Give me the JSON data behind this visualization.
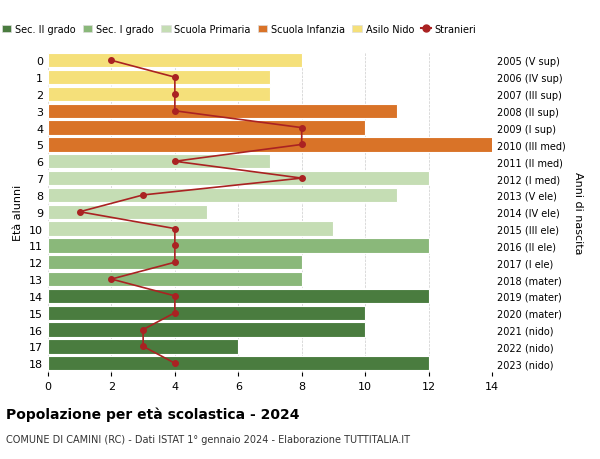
{
  "ages": [
    18,
    17,
    16,
    15,
    14,
    13,
    12,
    11,
    10,
    9,
    8,
    7,
    6,
    5,
    4,
    3,
    2,
    1,
    0
  ],
  "years": [
    "2005 (V sup)",
    "2006 (IV sup)",
    "2007 (III sup)",
    "2008 (II sup)",
    "2009 (I sup)",
    "2010 (III med)",
    "2011 (II med)",
    "2012 (I med)",
    "2013 (V ele)",
    "2014 (IV ele)",
    "2015 (III ele)",
    "2016 (II ele)",
    "2017 (I ele)",
    "2018 (mater)",
    "2019 (mater)",
    "2020 (mater)",
    "2021 (nido)",
    "2022 (nido)",
    "2023 (nido)"
  ],
  "bar_values": [
    12,
    6,
    10,
    10,
    12,
    8,
    8,
    12,
    9,
    5,
    11,
    12,
    7,
    15,
    10,
    11,
    7,
    7,
    8
  ],
  "stranieri_values": [
    4,
    3,
    3,
    4,
    4,
    2,
    4,
    4,
    4,
    1,
    3,
    8,
    4,
    8,
    8,
    4,
    4,
    4,
    2
  ],
  "bar_colors": [
    "#4a7c3f",
    "#4a7c3f",
    "#4a7c3f",
    "#4a7c3f",
    "#4a7c3f",
    "#8ab87a",
    "#8ab87a",
    "#8ab87a",
    "#c5ddb4",
    "#c5ddb4",
    "#c5ddb4",
    "#c5ddb4",
    "#c5ddb4",
    "#d97328",
    "#d97328",
    "#d97328",
    "#f5e07a",
    "#f5e07a",
    "#f5e07a"
  ],
  "legend_labels": [
    "Sec. II grado",
    "Sec. I grado",
    "Scuola Primaria",
    "Scuola Infanzia",
    "Asilo Nido",
    "Stranieri"
  ],
  "legend_colors": [
    "#4a7c3f",
    "#8ab87a",
    "#c5ddb4",
    "#d97328",
    "#f5e07a",
    "#aa2222"
  ],
  "title": "Popolazione per età scolastica - 2024",
  "subtitle": "COMUNE DI CAMINI (RC) - Dati ISTAT 1° gennaio 2024 - Elaborazione TUTTITALIA.IT",
  "ylabel_left": "Età alunni",
  "ylabel_right": "Anni di nascita",
  "xlim": [
    0,
    14
  ],
  "stranieri_color": "#aa2222",
  "bg_color": "#ffffff",
  "grid_color": "#cccccc"
}
